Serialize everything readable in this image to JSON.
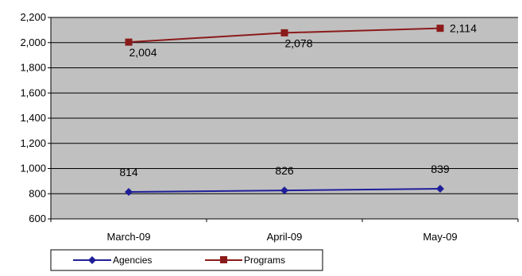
{
  "chart_data": {
    "type": "line",
    "categories": [
      "March-09",
      "April-09",
      "May-09"
    ],
    "series": [
      {
        "name": "Agencies",
        "values": [
          814,
          826,
          839
        ],
        "color": "#1f1f9a",
        "marker": "diamond"
      },
      {
        "name": "Programs",
        "values": [
          2004,
          2078,
          2114
        ],
        "color": "#8b1a1a",
        "marker": "square"
      }
    ],
    "data_labels": {
      "Agencies": [
        "814",
        "826",
        "839"
      ],
      "Programs": [
        "2,004",
        "2,078",
        "2,114"
      ]
    },
    "ylim": [
      600,
      2200
    ],
    "yticks": [
      600,
      800,
      1000,
      1200,
      1400,
      1600,
      1800,
      2000,
      2200
    ],
    "ytick_labels": [
      "600",
      "800",
      "1,000",
      "1,200",
      "1,400",
      "1,600",
      "1,800",
      "2,000",
      "2,200"
    ],
    "grid": true,
    "legend_position": "bottom-left",
    "plot_background": "#c0c0c0",
    "title": "",
    "xlabel": "",
    "ylabel": ""
  }
}
